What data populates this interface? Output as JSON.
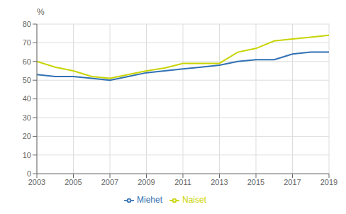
{
  "chart_data": {
    "type": "line",
    "y_label": "%",
    "x": [
      2003,
      2004,
      2005,
      2006,
      2007,
      2008,
      2009,
      2010,
      2011,
      2012,
      2013,
      2014,
      2015,
      2016,
      2017,
      2018,
      2019
    ],
    "series": [
      {
        "name": "Miehet",
        "color": "#3070b3",
        "values": [
          53.0,
          52.0,
          52.0,
          51.0,
          50.0,
          52.0,
          54.0,
          55.0,
          56.0,
          57.0,
          58.0,
          60.0,
          61.0,
          61.0,
          64.0,
          65.0,
          65.0
        ]
      },
      {
        "name": "Naiset",
        "color": "#c8d400",
        "values": [
          60.0,
          57.0,
          55.0,
          52.0,
          51.0,
          53.0,
          55.0,
          56.5,
          59.0,
          59.0,
          59.0,
          65.0,
          67.0,
          71.0,
          72.0,
          73.0,
          74.0
        ]
      }
    ],
    "xlim": [
      2003,
      2019
    ],
    "xticks": [
      2003,
      2005,
      2007,
      2009,
      2011,
      2013,
      2015,
      2017,
      2019
    ],
    "ylim": [
      0,
      80
    ],
    "yticks": [
      0,
      10,
      20,
      30,
      40,
      50,
      60,
      70,
      80
    ],
    "grid": true,
    "legend": "bottom"
  }
}
